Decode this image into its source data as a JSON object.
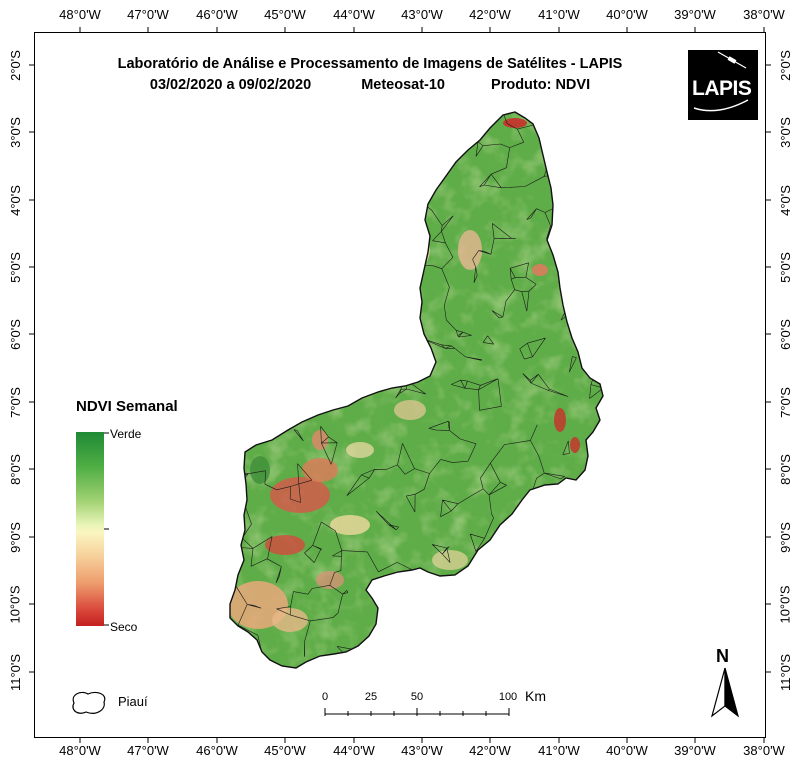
{
  "title": {
    "line1": "Laboratório de Análise e Processamento de Imagens de Satélites - LAPIS",
    "period": "03/02/2020  a 09/02/2020",
    "satellite": "Meteosat-10",
    "product": "Produto: NDVI"
  },
  "logo": {
    "text": "LAPIS"
  },
  "longitude_labels": [
    "48°0'W",
    "47°0'W",
    "46°0'W",
    "45°0'W",
    "44°0'W",
    "43°0'W",
    "42°0'W",
    "41°0'W",
    "40°0'W",
    "39°0'W",
    "38°0'W"
  ],
  "latitude_labels": [
    "2°0'S",
    "3°0'S",
    "4°0'S",
    "5°0'S",
    "6°0'S",
    "7°0'S",
    "8°0'S",
    "9°0'S",
    "10°0'S",
    "11°0'S"
  ],
  "legend": {
    "title": "NDVI Semanal",
    "high_label": "Verde",
    "low_label": "Seco",
    "colors": [
      "#1f8a35",
      "#4fae45",
      "#9fd070",
      "#f6f7c0",
      "#f6d09a",
      "#ee9c6d",
      "#d9463a",
      "#c3201f"
    ]
  },
  "inset": {
    "label": "Piauí"
  },
  "scale_bar": {
    "ticks": [
      "0",
      "25",
      "50",
      "100"
    ],
    "unit": "Km"
  },
  "north_arrow": {
    "label": "N"
  },
  "map": {
    "region": "Piauí",
    "land_color": "#62ad4a",
    "border_color": "#1a1a1a"
  }
}
